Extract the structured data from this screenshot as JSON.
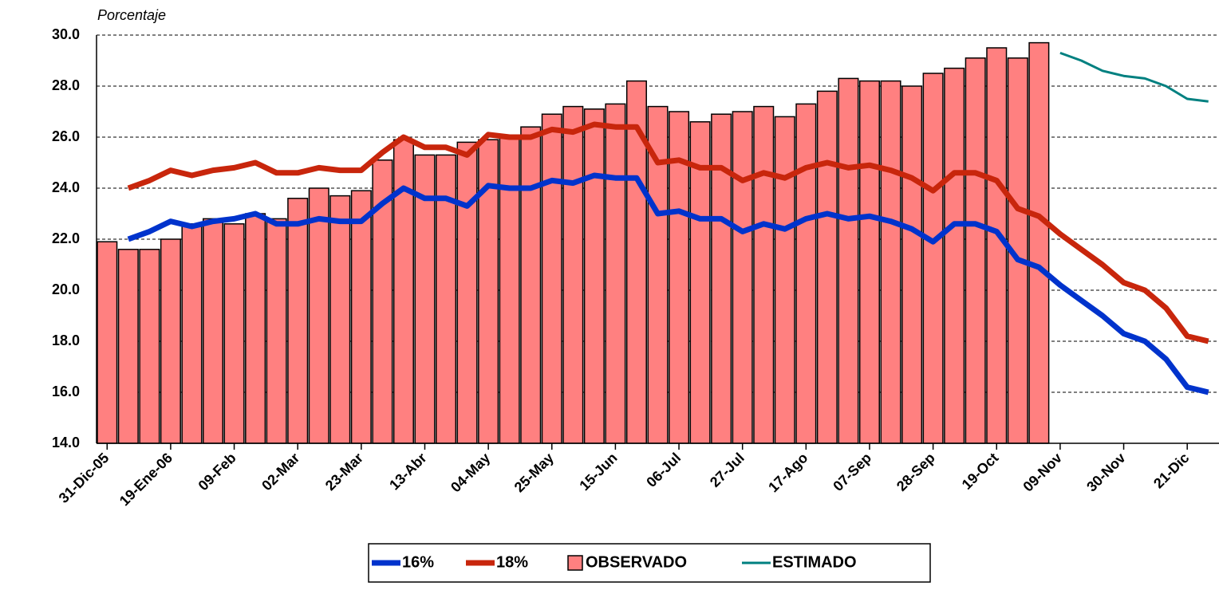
{
  "chart_data": {
    "type": "bar",
    "y_label": "Porcentaje",
    "categories": [
      "31-Dic-05",
      null,
      null,
      "19-Ene-06",
      null,
      null,
      "09-Feb",
      null,
      null,
      "02-Mar",
      null,
      null,
      "23-Mar",
      null,
      null,
      "13-Abr",
      null,
      null,
      "04-May",
      null,
      null,
      "25-May",
      null,
      null,
      "15-Jun",
      null,
      null,
      "06-Jul",
      null,
      null,
      "27-Jul",
      null,
      null,
      "17-Ago",
      null,
      null,
      "07-Sep",
      null,
      null,
      "28-Sep",
      null,
      null,
      "19-Oct",
      null,
      null,
      "09-Nov",
      null,
      null,
      "30-Nov",
      null,
      null,
      "21-Dic",
      null
    ],
    "series": [
      {
        "name": "16%",
        "type": "line",
        "color": "#0033cc",
        "values": [
          null,
          22.0,
          22.3,
          22.7,
          22.5,
          22.7,
          22.8,
          23.0,
          22.6,
          22.6,
          22.8,
          22.7,
          22.7,
          23.4,
          24.0,
          23.6,
          23.6,
          23.3,
          24.1,
          24.0,
          24.0,
          24.3,
          24.2,
          24.5,
          24.4,
          24.4,
          23.0,
          23.1,
          22.8,
          22.8,
          22.3,
          22.6,
          22.4,
          22.8,
          23.0,
          22.8,
          22.9,
          22.7,
          22.4,
          21.9,
          22.6,
          22.6,
          22.3,
          21.2,
          20.9,
          20.2,
          19.6,
          19.0,
          18.3,
          18.0,
          17.3,
          16.2,
          16.0
        ]
      },
      {
        "name": "18%",
        "type": "line",
        "color": "#c8260c",
        "values": [
          null,
          24.0,
          24.3,
          24.7,
          24.5,
          24.7,
          24.8,
          25.0,
          24.6,
          24.6,
          24.8,
          24.7,
          24.7,
          25.4,
          26.0,
          25.6,
          25.6,
          25.3,
          26.1,
          26.0,
          26.0,
          26.3,
          26.2,
          26.5,
          26.4,
          26.4,
          25.0,
          25.1,
          24.8,
          24.8,
          24.3,
          24.6,
          24.4,
          24.8,
          25.0,
          24.8,
          24.9,
          24.7,
          24.4,
          23.9,
          24.6,
          24.6,
          24.3,
          23.2,
          22.9,
          22.2,
          21.6,
          21.0,
          20.3,
          20.0,
          19.3,
          18.2,
          18.0
        ]
      },
      {
        "name": "OBSERVADO",
        "type": "bar",
        "color": "#ff8080",
        "values": [
          21.9,
          21.6,
          21.6,
          22.0,
          22.6,
          22.8,
          22.6,
          23.0,
          22.8,
          23.6,
          24.0,
          23.7,
          23.9,
          25.1,
          25.9,
          25.3,
          25.3,
          25.8,
          25.9,
          26.0,
          26.4,
          26.9,
          27.2,
          27.1,
          27.3,
          28.2,
          27.2,
          27.0,
          26.6,
          26.9,
          27.0,
          27.2,
          26.8,
          27.3,
          27.8,
          28.3,
          28.2,
          28.2,
          28.0,
          28.5,
          28.7,
          29.1,
          29.5,
          29.1,
          29.7,
          null,
          null,
          null,
          null,
          null,
          null,
          null,
          null
        ]
      },
      {
        "name": "ESTIMADO",
        "type": "line",
        "color": "#008080",
        "values": [
          null,
          null,
          null,
          null,
          null,
          null,
          null,
          null,
          null,
          null,
          null,
          null,
          null,
          null,
          null,
          null,
          null,
          null,
          null,
          null,
          null,
          null,
          null,
          null,
          null,
          null,
          null,
          null,
          null,
          null,
          null,
          null,
          null,
          null,
          null,
          null,
          null,
          null,
          null,
          null,
          null,
          null,
          null,
          null,
          null,
          29.3,
          29.0,
          28.6,
          28.4,
          28.3,
          28.0,
          27.5,
          27.4
        ]
      }
    ],
    "ylim": [
      14,
      30
    ],
    "yticks": [
      {
        "value": 14,
        "label": "14.0"
      },
      {
        "value": 16,
        "label": "16.0"
      },
      {
        "value": 18,
        "label": "18.0"
      },
      {
        "value": 20,
        "label": "20.0"
      },
      {
        "value": 22,
        "label": "22.0"
      },
      {
        "value": 24,
        "label": "24.0"
      },
      {
        "value": 26,
        "label": "26.0"
      },
      {
        "value": 28,
        "label": "28.0"
      },
      {
        "value": 30,
        "label": "30.0"
      }
    ],
    "grid": true,
    "legend": "bottom"
  }
}
